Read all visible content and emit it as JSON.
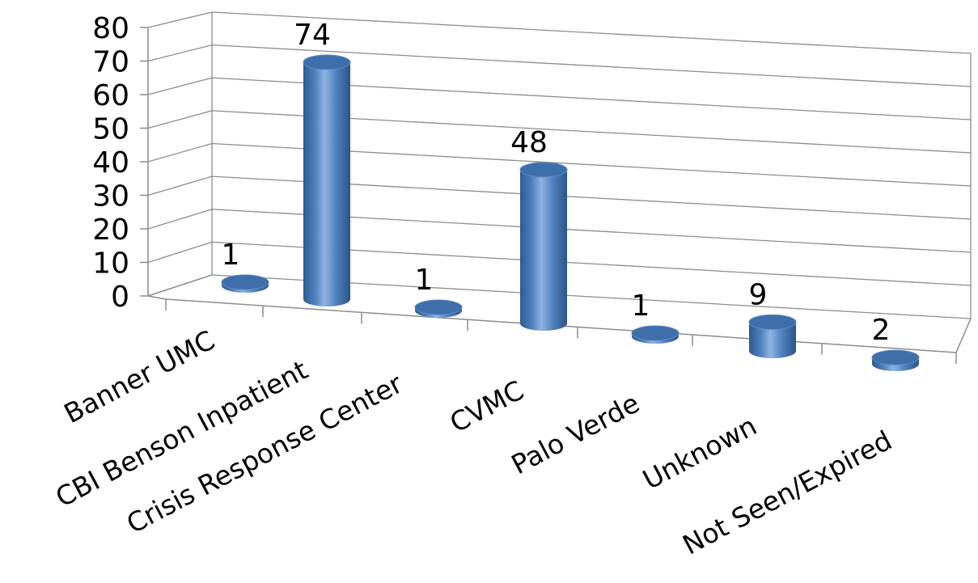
{
  "chart_data": {
    "type": "bar",
    "style": "3d-cylinder",
    "categories": [
      "Banner UMC",
      "CBI Benson Inpatient",
      "Crisis Response Center",
      "CVMC",
      "Palo Verde",
      "Unknown",
      "Not Seen/Expired"
    ],
    "values": [
      1,
      74,
      1,
      48,
      1,
      9,
      2
    ],
    "ylim": [
      0,
      80
    ],
    "yticks": [
      0,
      10,
      20,
      30,
      40,
      50,
      60,
      70,
      80
    ],
    "grid": true,
    "legend": "none",
    "colors": {
      "bar_body": "#4f81bd",
      "bar_light": "#8fb3e3",
      "bar_dark": "#2c5588",
      "bar_top": "#3e6faa",
      "grid": "#8c8c8c"
    }
  }
}
